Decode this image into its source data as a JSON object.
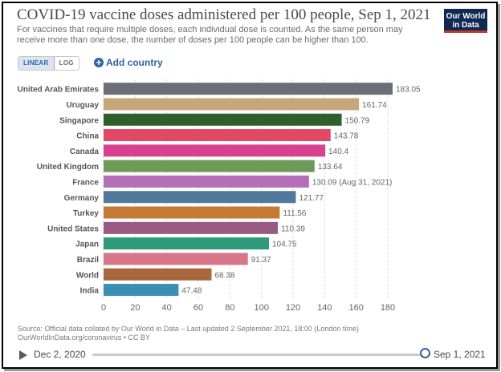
{
  "header": {
    "title": "COVID-19 vaccine doses administered per 100 people, Sep 1, 2021",
    "subtitle": "For vaccines that require multiple doses, each individual dose is counted. As the same person may receive more than one dose, the number of doses per 100 people can be higher than 100.",
    "logo_line1": "Our World",
    "logo_line2": "in Data"
  },
  "controls": {
    "linear_label": "LINEAR",
    "log_label": "LOG",
    "add_country_label": "Add country"
  },
  "chart_data": {
    "type": "bar",
    "orientation": "horizontal",
    "title": "COVID-19 vaccine doses administered per 100 people, Sep 1, 2021",
    "xlim": [
      0,
      180
    ],
    "x_ticks": [
      0,
      20,
      40,
      60,
      80,
      100,
      120,
      140,
      160,
      180
    ],
    "categories": [
      "United Arab Emirates",
      "Uruguay",
      "Singapore",
      "China",
      "Canada",
      "United Kingdom",
      "France",
      "Germany",
      "Turkey",
      "United States",
      "Japan",
      "Brazil",
      "World",
      "India"
    ],
    "values": [
      183.05,
      161.74,
      150.79,
      143.78,
      140.4,
      133.64,
      130.09,
      121.77,
      111.56,
      110.39,
      104.75,
      91.37,
      68.38,
      47.48
    ],
    "value_labels": [
      "183.05",
      "161.74",
      "150.79",
      "143.78",
      "140.4",
      "133.64",
      "130.09 (Aug 31, 2021)",
      "121.77",
      "111.56",
      "110.39",
      "104.75",
      "91.37",
      "68.38",
      "47.48"
    ],
    "colors": [
      "#6b6e75",
      "#c9a57a",
      "#2f5f2a",
      "#e04866",
      "#d9418f",
      "#6e9a58",
      "#b56fb8",
      "#52799b",
      "#c47a35",
      "#9a5a82",
      "#2f9a7a",
      "#d97588",
      "#a8683e",
      "#3a8fb5"
    ],
    "grid": true
  },
  "footer": {
    "source_line1": "Source: Official data collated by Our World in Data – Last updated 2 September 2021, 18:00 (London time)",
    "source_line2": "OurWorldInData.org/coronavirus • CC BY"
  },
  "timeline": {
    "start_label": "Dec 2, 2020",
    "end_label": "Sep 1, 2021"
  }
}
